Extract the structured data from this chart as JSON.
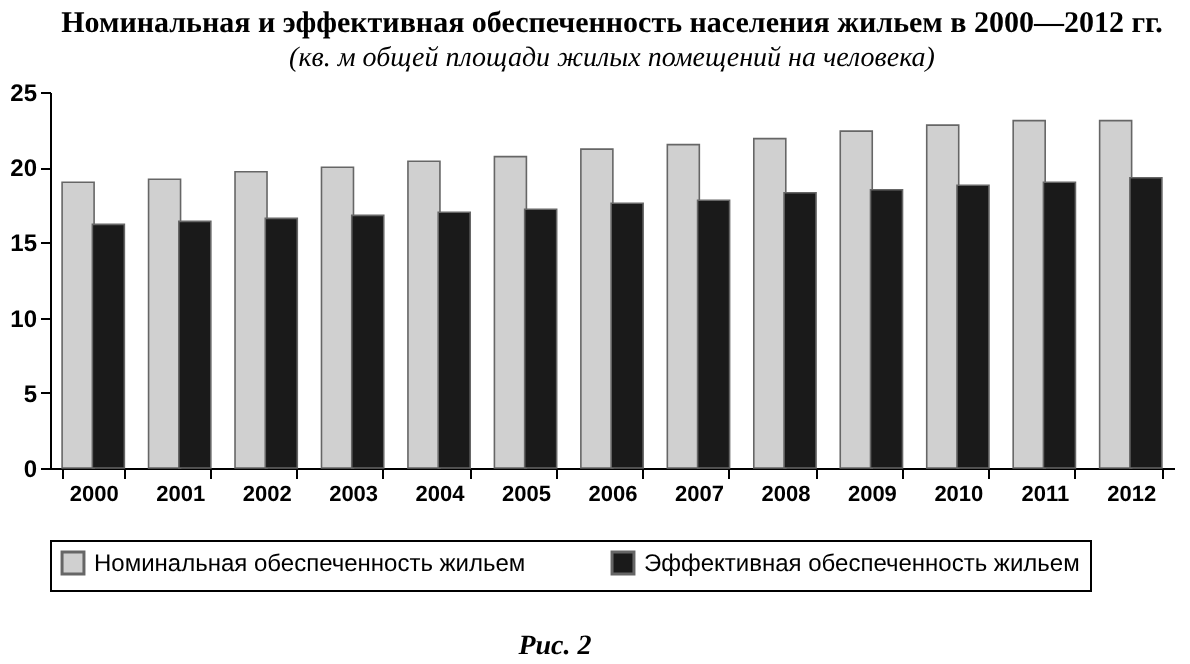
{
  "chart_data": {
    "type": "bar",
    "title": "Номинальная и эффективная\nобеспеченность населения жильем в 2000—2012 гг.",
    "subtitle": "(кв. м общей площади жилых помещений на человека)",
    "categories": [
      "2000",
      "2001",
      "2002",
      "2003",
      "2004",
      "2005",
      "2006",
      "2007",
      "2008",
      "2009",
      "2010",
      "2011",
      "2012"
    ],
    "series": [
      {
        "name": "Номинальная обеспеченность жильем",
        "color": "#d0d0d0",
        "values": [
          19.0,
          19.2,
          19.7,
          20.0,
          20.4,
          20.7,
          21.2,
          21.5,
          21.9,
          22.4,
          22.8,
          23.1,
          23.1
        ]
      },
      {
        "name": "Эффективная обеспеченность жильем",
        "color": "#1a1a1a",
        "values": [
          16.2,
          16.4,
          16.6,
          16.8,
          17.0,
          17.2,
          17.6,
          17.8,
          18.3,
          18.5,
          18.8,
          19.0,
          19.3
        ]
      }
    ],
    "ylim": [
      0,
      25
    ],
    "yticks": [
      0,
      5,
      10,
      15,
      20,
      25
    ],
    "grid": false,
    "legend": "bottom",
    "annotations": [
      "Рис. 2"
    ]
  }
}
